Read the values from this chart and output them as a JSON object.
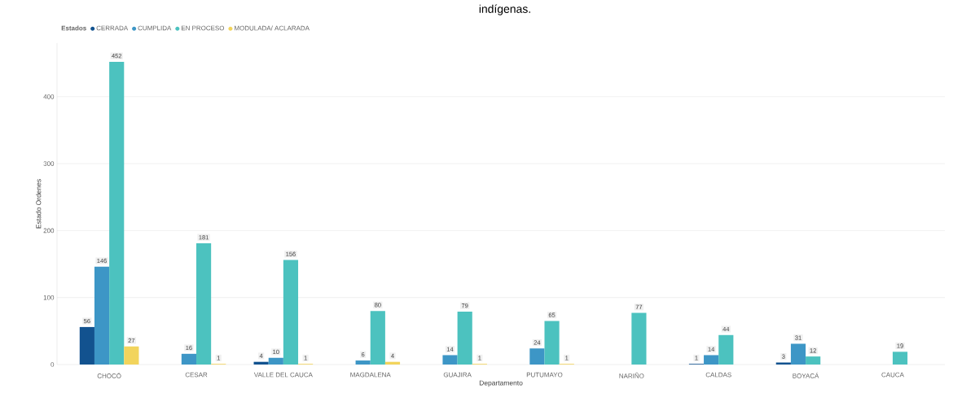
{
  "chart_data": {
    "type": "bar",
    "title": "indígenas.",
    "legend_title": "Estados",
    "xlabel": "Departamento",
    "ylabel": "Estado Ordenes",
    "categories": [
      "CHOCÓ",
      "CESAR",
      "VALLE DEL CAUCA",
      "MAGDALENA",
      "GUAJIRA",
      "PUTUMAYO",
      "NARIÑO",
      "CALDAS",
      "BOYACÁ",
      "CAUCA"
    ],
    "series": [
      {
        "name": "CERRADA",
        "color": "#12528f",
        "values": [
          56,
          null,
          4,
          null,
          null,
          null,
          null,
          1,
          3,
          null
        ]
      },
      {
        "name": "CUMPLIDA",
        "color": "#3d96c6",
        "values": [
          146,
          16,
          10,
          6,
          14,
          24,
          null,
          14,
          31,
          null
        ]
      },
      {
        "name": "EN PROCESO",
        "color": "#4cc2bf",
        "values": [
          452,
          181,
          156,
          80,
          79,
          65,
          77,
          44,
          12,
          19
        ]
      },
      {
        "name": "MODULADA/ ACLARADA",
        "color": "#f2d45c",
        "values": [
          27,
          1,
          1,
          4,
          1,
          1,
          null,
          null,
          null,
          null
        ]
      }
    ],
    "ylim": [
      0,
      480
    ],
    "yticks": [
      0,
      100,
      200,
      300,
      400
    ],
    "grid": "y",
    "legend": "top left",
    "data_labels": true
  }
}
